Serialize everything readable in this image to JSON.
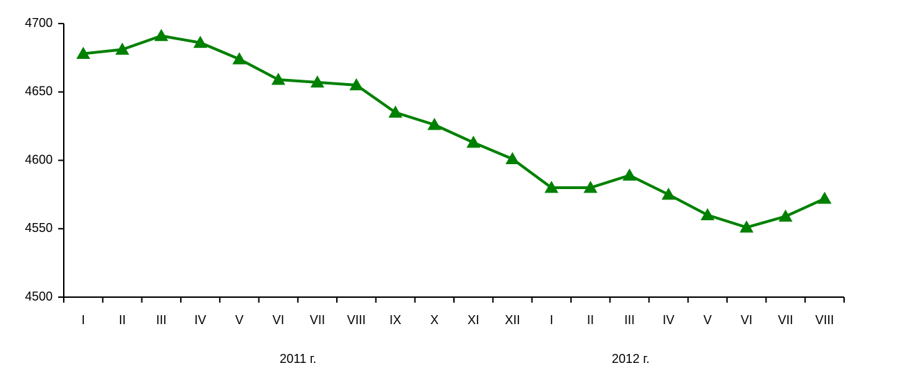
{
  "chart_data": {
    "type": "line",
    "categories": [
      "I",
      "II",
      "III",
      "IV",
      "V",
      "VI",
      "VII",
      "VIII",
      "IX",
      "X",
      "XI",
      "XII",
      "I",
      "II",
      "III",
      "IV",
      "V",
      "VI",
      "VII",
      "VIII"
    ],
    "group_labels": [
      "2011 г.",
      "2012 г."
    ],
    "series": [
      {
        "color": "#008000",
        "values": [
          4678,
          4681,
          4691,
          4686,
          4674,
          4659,
          4657,
          4655,
          4635,
          4626,
          4613,
          4601,
          4580,
          4580,
          4589,
          4575,
          4560,
          4551,
          4559,
          4572
        ]
      }
    ],
    "ylim": [
      4500,
      4700
    ],
    "yticks": [
      4500,
      4550,
      4600,
      4650,
      4700
    ],
    "grid": false
  }
}
